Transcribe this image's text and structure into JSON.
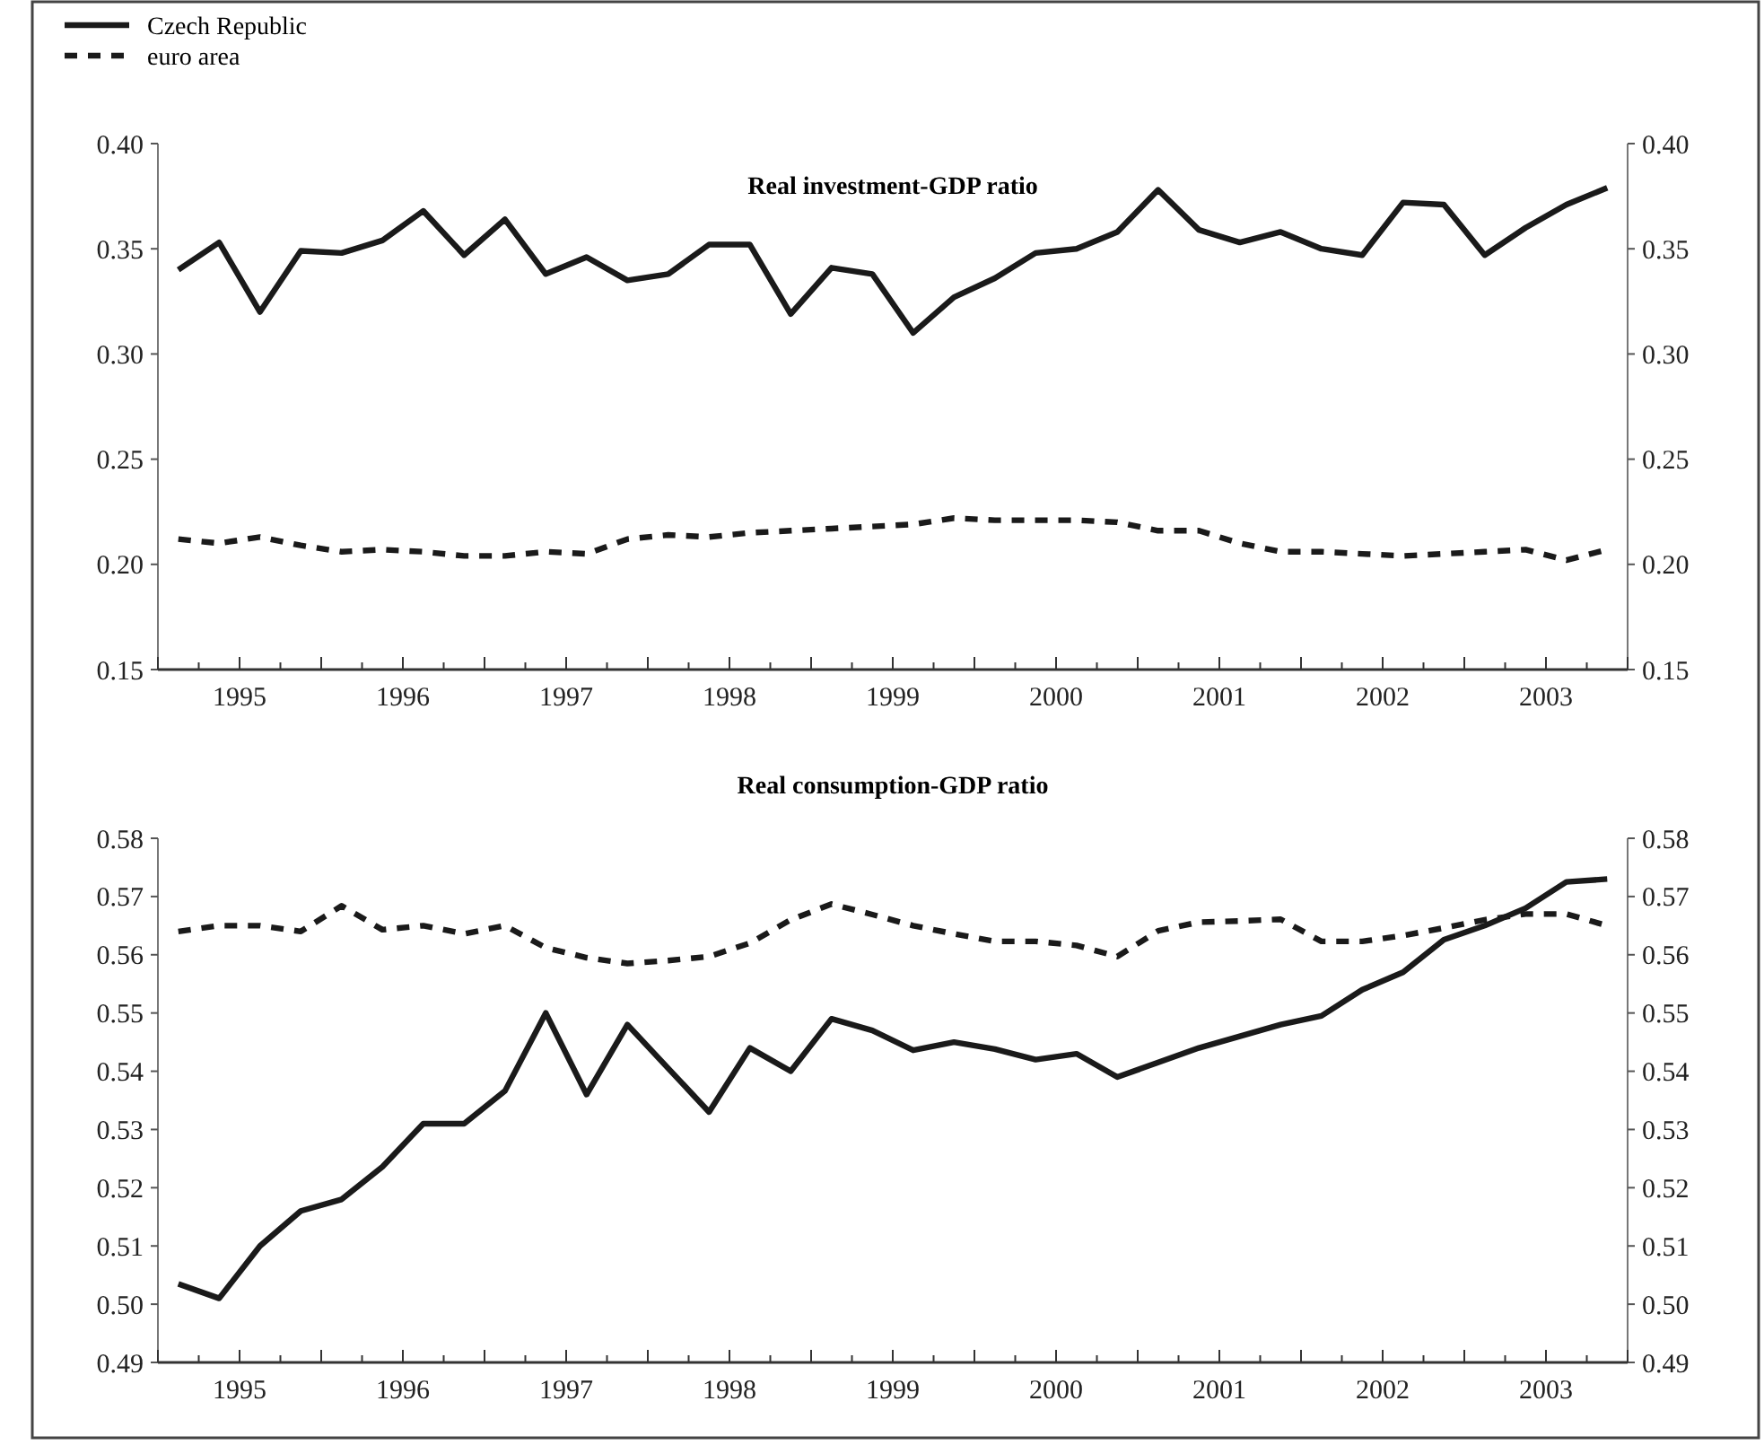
{
  "chart_data": [
    {
      "type": "line",
      "title": "Real investment-GDP ratio",
      "legend": "top left",
      "marker": "none",
      "x": [
        1995.125,
        1995.375,
        1995.625,
        1995.875,
        1996.125,
        1996.375,
        1996.625,
        1996.875,
        1997.125,
        1997.375,
        1997.625,
        1997.875,
        1998.125,
        1998.375,
        1998.625,
        1998.875,
        1999.125,
        1999.375,
        1999.625,
        1999.875,
        2000.125,
        2000.375,
        2000.625,
        2000.875,
        2001.125,
        2001.375,
        2001.625,
        2001.875,
        2002.125,
        2002.375,
        2002.625,
        2002.875,
        2003.125,
        2003.375,
        2003.625,
        2003.875
      ],
      "xlim": [
        1995,
        2004
      ],
      "xticks": [
        {
          "value": 1995,
          "label": null
        },
        {
          "value": 1995.25,
          "label": null
        },
        {
          "value": 1995.5,
          "label": "1995"
        },
        {
          "value": 1995.75,
          "label": null
        },
        {
          "value": 1996,
          "label": null
        },
        {
          "value": 1996.25,
          "label": null
        },
        {
          "value": 1996.5,
          "label": "1996"
        },
        {
          "value": 1996.75,
          "label": null
        },
        {
          "value": 1997,
          "label": null
        },
        {
          "value": 1997.25,
          "label": null
        },
        {
          "value": 1997.5,
          "label": "1997"
        },
        {
          "value": 1997.75,
          "label": null
        },
        {
          "value": 1998,
          "label": null
        },
        {
          "value": 1998.25,
          "label": null
        },
        {
          "value": 1998.5,
          "label": "1998"
        },
        {
          "value": 1998.75,
          "label": null
        },
        {
          "value": 1999,
          "label": null
        },
        {
          "value": 1999.25,
          "label": null
        },
        {
          "value": 1999.5,
          "label": "1999"
        },
        {
          "value": 1999.75,
          "label": null
        },
        {
          "value": 2000,
          "label": null
        },
        {
          "value": 2000.25,
          "label": null
        },
        {
          "value": 2000.5,
          "label": "2000"
        },
        {
          "value": 2000.75,
          "label": null
        },
        {
          "value": 2001,
          "label": null
        },
        {
          "value": 2001.25,
          "label": null
        },
        {
          "value": 2001.5,
          "label": "2001"
        },
        {
          "value": 2001.75,
          "label": null
        },
        {
          "value": 2002,
          "label": null
        },
        {
          "value": 2002.25,
          "label": null
        },
        {
          "value": 2002.5,
          "label": "2002"
        },
        {
          "value": 2002.75,
          "label": null
        },
        {
          "value": 2003,
          "label": null
        },
        {
          "value": 2003.25,
          "label": null
        },
        {
          "value": 2003.5,
          "label": "2003"
        },
        {
          "value": 2003.75,
          "label": null
        },
        {
          "value": 2004,
          "label": null
        }
      ],
      "ylim": [
        0.15,
        0.4
      ],
      "yticks": [
        {
          "value": 0.15,
          "label": "0.15"
        },
        {
          "value": 0.2,
          "label": "0.20"
        },
        {
          "value": 0.25,
          "label": "0.25"
        },
        {
          "value": 0.3,
          "label": "0.30"
        },
        {
          "value": 0.35,
          "label": "0.35"
        },
        {
          "value": 0.4,
          "label": "0.40"
        }
      ],
      "y2lim": [
        0.15,
        0.4
      ],
      "y2ticks": [
        {
          "value": 0.15,
          "label": "0.15"
        },
        {
          "value": 0.2,
          "label": "0.20"
        },
        {
          "value": 0.25,
          "label": "0.25"
        },
        {
          "value": 0.3,
          "label": "0.30"
        },
        {
          "value": 0.35,
          "label": "0.35"
        },
        {
          "value": 0.4,
          "label": "0.40"
        }
      ],
      "series": [
        {
          "name": "Czech Republic",
          "color": "#1a1a1a",
          "line_style": "solid",
          "values": [
            0.34,
            0.353,
            0.32,
            0.349,
            0.348,
            0.354,
            0.368,
            0.347,
            0.364,
            0.338,
            0.346,
            0.335,
            0.338,
            0.352,
            0.352,
            0.319,
            0.341,
            0.338,
            0.31,
            0.327,
            0.336,
            0.348,
            0.35,
            0.358,
            0.378,
            0.359,
            0.353,
            0.358,
            0.35,
            0.347,
            0.372,
            0.371,
            0.347,
            0.36,
            0.371,
            0.379
          ]
        },
        {
          "name": "euro area",
          "color": "#1a1a1a",
          "line_style": "dashed",
          "values": [
            0.212,
            0.21,
            0.213,
            0.209,
            0.206,
            0.207,
            0.206,
            0.204,
            0.204,
            0.206,
            0.205,
            0.212,
            0.214,
            0.213,
            0.215,
            0.216,
            0.217,
            0.218,
            0.219,
            0.222,
            0.221,
            0.221,
            0.221,
            0.22,
            0.216,
            0.216,
            0.21,
            0.206,
            0.206,
            0.205,
            0.204,
            0.205,
            0.206,
            0.207,
            0.202,
            0.207
          ]
        }
      ]
    },
    {
      "type": "line",
      "title": "Real consumption-GDP ratio",
      "legend": false,
      "marker": "none",
      "x": [
        1995.125,
        1995.375,
        1995.625,
        1995.875,
        1996.125,
        1996.375,
        1996.625,
        1996.875,
        1997.125,
        1997.375,
        1997.625,
        1997.875,
        1998.125,
        1998.375,
        1998.625,
        1998.875,
        1999.125,
        1999.375,
        1999.625,
        1999.875,
        2000.125,
        2000.375,
        2000.625,
        2000.875,
        2001.125,
        2001.375,
        2001.625,
        2001.875,
        2002.125,
        2002.375,
        2002.625,
        2002.875,
        2003.125,
        2003.375,
        2003.625,
        2003.875
      ],
      "xlim": [
        1995,
        2004
      ],
      "xticks": [
        {
          "value": 1995,
          "label": null
        },
        {
          "value": 1995.25,
          "label": null
        },
        {
          "value": 1995.5,
          "label": "1995"
        },
        {
          "value": 1995.75,
          "label": null
        },
        {
          "value": 1996,
          "label": null
        },
        {
          "value": 1996.25,
          "label": null
        },
        {
          "value": 1996.5,
          "label": "1996"
        },
        {
          "value": 1996.75,
          "label": null
        },
        {
          "value": 1997,
          "label": null
        },
        {
          "value": 1997.25,
          "label": null
        },
        {
          "value": 1997.5,
          "label": "1997"
        },
        {
          "value": 1997.75,
          "label": null
        },
        {
          "value": 1998,
          "label": null
        },
        {
          "value": 1998.25,
          "label": null
        },
        {
          "value": 1998.5,
          "label": "1998"
        },
        {
          "value": 1998.75,
          "label": null
        },
        {
          "value": 1999,
          "label": null
        },
        {
          "value": 1999.25,
          "label": null
        },
        {
          "value": 1999.5,
          "label": "1999"
        },
        {
          "value": 1999.75,
          "label": null
        },
        {
          "value": 2000,
          "label": null
        },
        {
          "value": 2000.25,
          "label": null
        },
        {
          "value": 2000.5,
          "label": "2000"
        },
        {
          "value": 2000.75,
          "label": null
        },
        {
          "value": 2001,
          "label": null
        },
        {
          "value": 2001.25,
          "label": null
        },
        {
          "value": 2001.5,
          "label": "2001"
        },
        {
          "value": 2001.75,
          "label": null
        },
        {
          "value": 2002,
          "label": null
        },
        {
          "value": 2002.25,
          "label": null
        },
        {
          "value": 2002.5,
          "label": "2002"
        },
        {
          "value": 2002.75,
          "label": null
        },
        {
          "value": 2003,
          "label": null
        },
        {
          "value": 2003.25,
          "label": null
        },
        {
          "value": 2003.5,
          "label": "2003"
        },
        {
          "value": 2003.75,
          "label": null
        },
        {
          "value": 2004,
          "label": null
        }
      ],
      "ylim": [
        0.49,
        0.58
      ],
      "yticks": [
        {
          "value": 0.49,
          "label": "0.49"
        },
        {
          "value": 0.5,
          "label": "0.50"
        },
        0.51,
        0.52,
        0.53,
        0.54,
        0.55,
        0.56,
        0.57,
        0.58
      ],
      "y2lim": [
        0.49,
        0.58
      ],
      "y2ticks": [
        {
          "value": 0.49,
          "label": "0.49"
        },
        {
          "value": 0.5,
          "label": "0.50"
        },
        0.51,
        0.52,
        0.53,
        0.54,
        0.55,
        0.56,
        0.57,
        0.58
      ],
      "series": [
        {
          "color": "#1a1a1a",
          "line_style": "solid",
          "values": [
            0.5035,
            0.501,
            0.51,
            0.516,
            0.518,
            0.5236,
            0.531,
            0.531,
            0.5366,
            0.55,
            0.536,
            0.548,
            0.5405,
            0.533,
            0.544,
            0.54,
            0.549,
            0.547,
            0.5436,
            0.545,
            0.5438,
            0.542,
            0.543,
            0.539,
            0.5415,
            0.544,
            0.546,
            0.548,
            0.5495,
            0.554,
            0.557,
            0.5626,
            0.565,
            0.568,
            0.5725,
            0.573
          ]
        },
        {
          "color": "#1a1a1a",
          "line_style": "dashed",
          "values": [
            0.564,
            0.565,
            0.565,
            0.564,
            0.5684,
            0.5643,
            0.565,
            0.5636,
            0.565,
            0.5612,
            0.5595,
            0.5585,
            0.559,
            0.5597,
            0.562,
            0.566,
            0.5687,
            0.5669,
            0.565,
            0.5636,
            0.5623,
            0.5623,
            0.5616,
            0.5597,
            0.5641,
            0.5656,
            0.5658,
            0.5661,
            0.5623,
            0.5623,
            0.5633,
            0.5646,
            0.566,
            0.567,
            0.567,
            0.565
          ]
        }
      ]
    }
  ]
}
